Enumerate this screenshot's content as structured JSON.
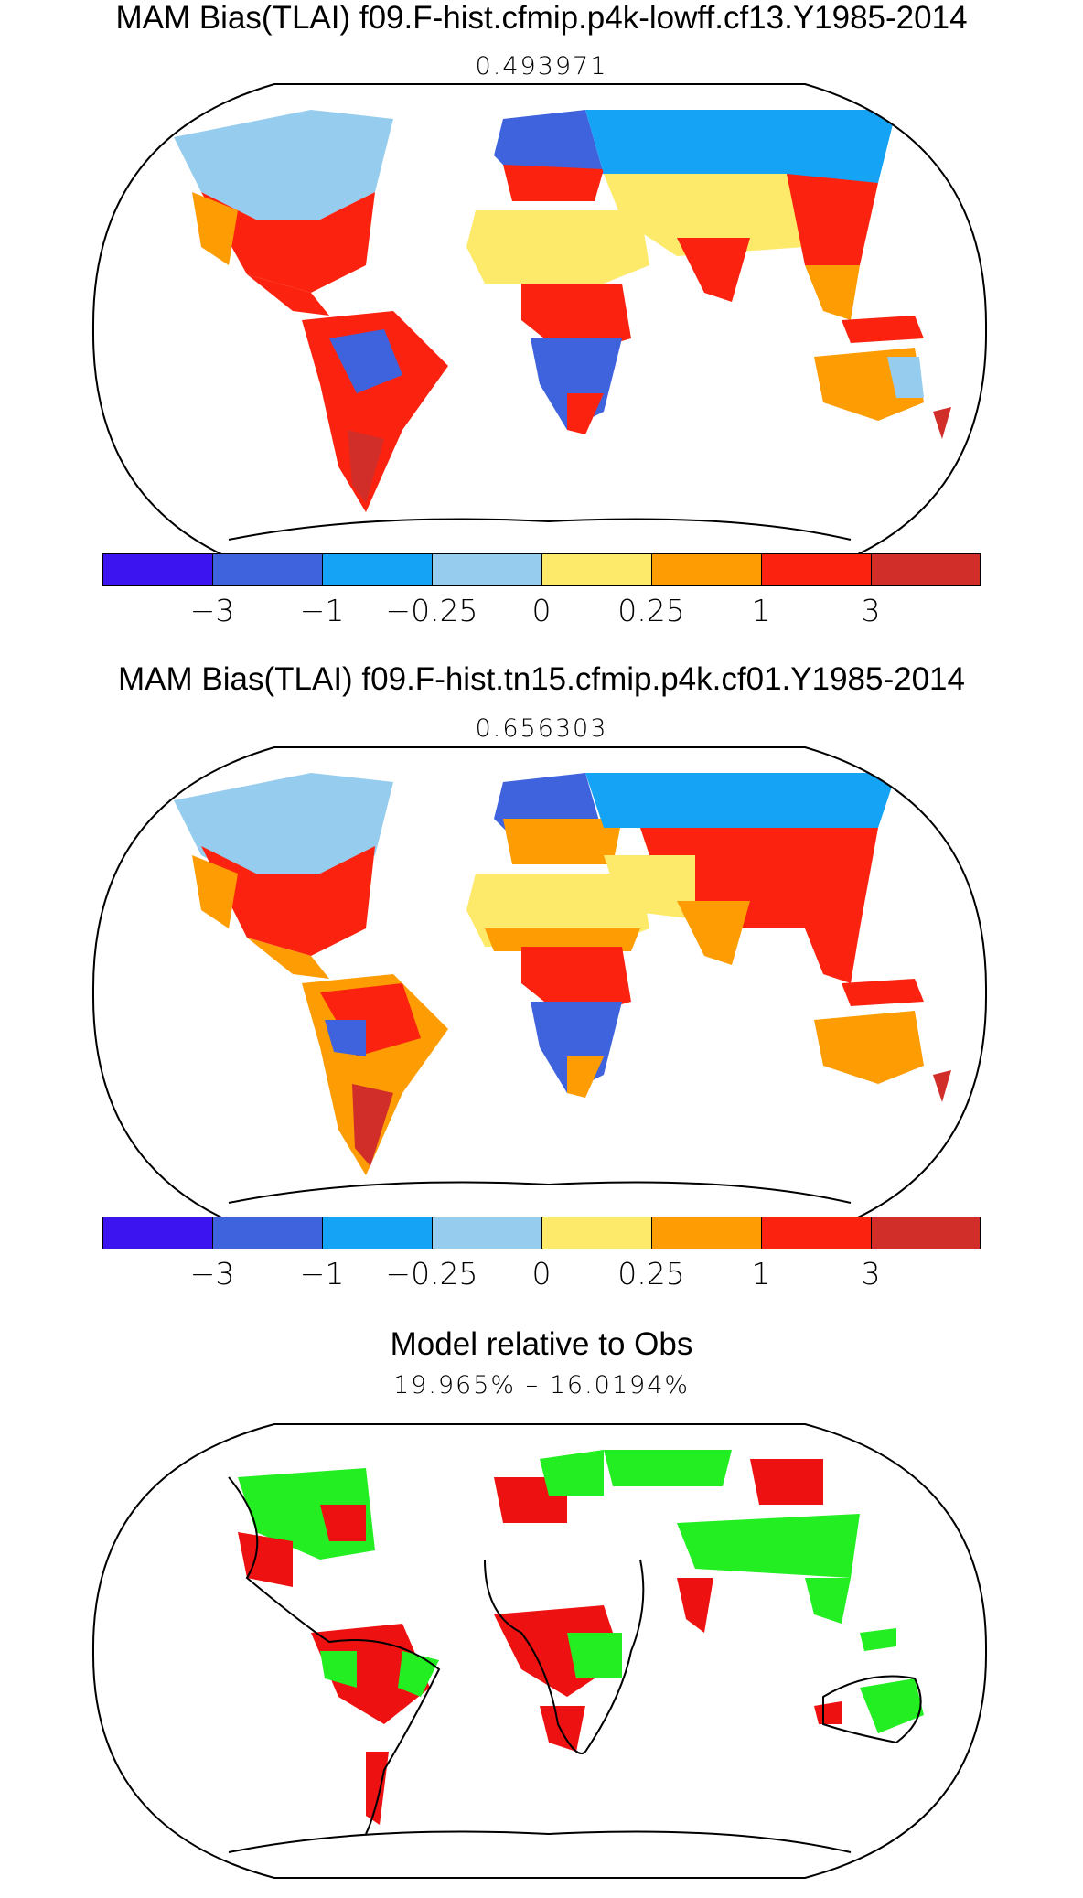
{
  "panels": [
    {
      "title": "MAM Bias(TLAI) f09.F-hist.cfmip.p4k-lowff.cf13.Y1985-2014",
      "subtitle": "0.493971"
    },
    {
      "title": "MAM Bias(TLAI) f09.F-hist.tn15.cfmip.p4k.cf01.Y1985-2014",
      "subtitle": "0.656303"
    },
    {
      "title": "Model relative to Obs",
      "subtitle": "19.965% – 16.0194%"
    }
  ],
  "colorbar": {
    "colors": [
      "#3b14f0",
      "#3f63dc",
      "#15a4f5",
      "#96cdee",
      "#fde96a",
      "#fd9c03",
      "#fb230f",
      "#d12e2a"
    ],
    "tick_labels": [
      "−3",
      "−1",
      "−0.25",
      "0",
      "0.25",
      "1",
      "3"
    ]
  },
  "comparison_colors": {
    "model_better": "#22ee22",
    "model_worse": "#ee1111"
  }
}
